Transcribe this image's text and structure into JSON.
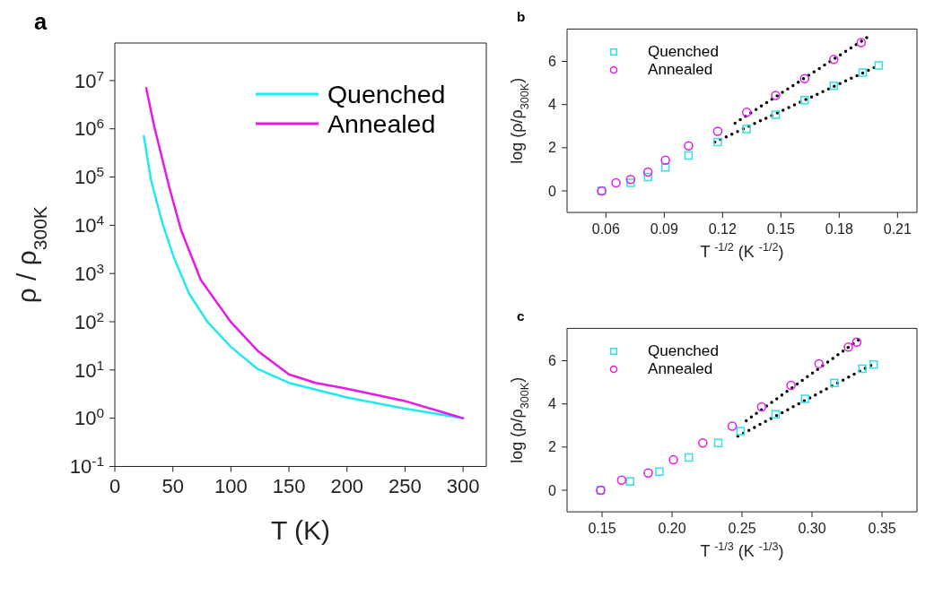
{
  "chart_data": [
    {
      "type": "line",
      "title": "a",
      "xlabel": "T (K)",
      "ylabel": "ρ / ρ$_{300K}$",
      "log": true,
      "legend": "top right",
      "xlim": [
        0,
        320
      ],
      "xticks": [
        0,
        50,
        100,
        150,
        200,
        250,
        300
      ],
      "ylim": [
        0.1,
        60000000
      ],
      "yticks": [
        {
          "value": 0.1,
          "label": "10$^{-1}$"
        },
        {
          "value": 1,
          "label": "10$^{0}$"
        },
        {
          "value": 10,
          "label": "10$^{1}$"
        },
        {
          "value": 100,
          "label": "10$^{2}$"
        },
        {
          "value": 1000,
          "label": "10$^{3}$"
        },
        {
          "value": 10000,
          "label": "10$^{4}$"
        },
        {
          "value": 100000,
          "label": "10$^{5}$"
        },
        {
          "value": 1000000,
          "label": "10$^{6}$"
        },
        {
          "value": 10000000,
          "label": "10$^{7}$"
        }
      ],
      "series": [
        {
          "name": "Quenched",
          "color": "#22e8f0",
          "x": [
            25,
            31,
            41,
            51,
            64,
            80,
            100,
            123,
            150,
            200,
            249,
            300
          ],
          "values": [
            700000,
            90000,
            11000,
            2100,
            380,
            98,
            30,
            10.5,
            5.4,
            2.7,
            1.6,
            1
          ]
        },
        {
          "name": "Annealed",
          "color": "#e619e6",
          "x": [
            27,
            34,
            47,
            57,
            74,
            100,
            123,
            150,
            173,
            200,
            249,
            300
          ],
          "values": [
            7000000,
            1100000,
            60000,
            8000,
            740,
            98,
            25,
            8.1,
            5.4,
            4.1,
            2.3,
            1
          ]
        }
      ]
    },
    {
      "type": "scatter",
      "title": "b",
      "xlabel": "T $^{-1/2}$ (K $^{-1/2}$)",
      "ylabel": "log (ρ/ρ$_{300K}$)",
      "legend": "top left",
      "xlim": [
        0.04,
        0.22
      ],
      "xticks": [
        0.06,
        0.09,
        0.12,
        0.15,
        0.18,
        0.21
      ],
      "ylim": [
        -1,
        7.5
      ],
      "yticks": [
        0,
        2,
        4,
        6
      ],
      "series": [
        {
          "name": "Quenched",
          "color": "#33e0e8",
          "marker": "square",
          "x": [
            0.0578,
            0.0727,
            0.0816,
            0.0906,
            0.1025,
            0.1175,
            0.1324,
            0.1473,
            0.1622,
            0.1772,
            0.1921,
            0.2003
          ],
          "values": [
            0,
            0.37,
            0.64,
            1.09,
            1.64,
            2.26,
            2.87,
            3.53,
            4.2,
            4.87,
            5.48,
            5.81
          ]
        },
        {
          "name": "Annealed",
          "color": "#e619e6",
          "marker": "circle",
          "x": [
            0.0578,
            0.0652,
            0.0727,
            0.0816,
            0.0906,
            0.1025,
            0.1175,
            0.1324,
            0.1473,
            0.1622,
            0.1772,
            0.1913
          ],
          "values": [
            0,
            0.37,
            0.53,
            0.87,
            1.42,
            2.09,
            2.76,
            3.64,
            4.42,
            5.2,
            6.09,
            6.87
          ]
        },
        {
          "type": "line",
          "color": "#000000",
          "line_style": "dotted",
          "x": [
            0.116,
            0.2003
          ],
          "values": [
            2.26,
            5.81
          ]
        },
        {
          "type": "line",
          "color": "#000000",
          "line_style": "dotted",
          "x": [
            0.1264,
            0.1954
          ],
          "values": [
            3.14,
            7.17
          ]
        }
      ]
    },
    {
      "type": "scatter",
      "title": "c",
      "xlabel": "T $^{-1/3}$ (K $^{-1/3}$)",
      "ylabel": "log (ρ/ρ$_{300K}$)",
      "legend": "top left",
      "xlim": [
        0.125,
        0.375
      ],
      "xticks": [
        0.15,
        {
          "value": 0.2,
          "label": "0.20"
        },
        0.25,
        {
          "value": 0.3,
          "label": "0.30"
        },
        0.35
      ],
      "ylim": [
        -1,
        7.5
      ],
      "yticks": [
        0,
        2,
        4,
        6
      ],
      "series": [
        {
          "name": "Quenched",
          "color": "#33e0e8",
          "marker": "square",
          "x": [
            0.149,
            0.17,
            0.191,
            0.212,
            0.233,
            0.249,
            0.274,
            0.295,
            0.316,
            0.336,
            0.344
          ],
          "values": [
            0,
            0.41,
            0.86,
            1.52,
            2.19,
            2.74,
            3.52,
            4.24,
            4.97,
            5.63,
            5.82
          ]
        },
        {
          "name": "Annealed",
          "color": "#e619e6",
          "marker": "circle",
          "x": [
            0.149,
            0.164,
            0.183,
            0.201,
            0.222,
            0.243,
            0.264,
            0.285,
            0.305,
            0.326,
            0.332
          ],
          "values": [
            0,
            0.47,
            0.8,
            1.41,
            2.19,
            2.97,
            3.86,
            4.86,
            5.86,
            6.63,
            6.86
          ]
        },
        {
          "type": "line",
          "color": "#000000",
          "line_style": "dotted",
          "x": [
            0.247,
            0.343
          ],
          "values": [
            2.5,
            5.82
          ]
        },
        {
          "type": "line",
          "color": "#000000",
          "line_style": "dotted",
          "x": [
            0.253,
            0.334
          ],
          "values": [
            3.22,
            7.0
          ]
        }
      ]
    }
  ]
}
